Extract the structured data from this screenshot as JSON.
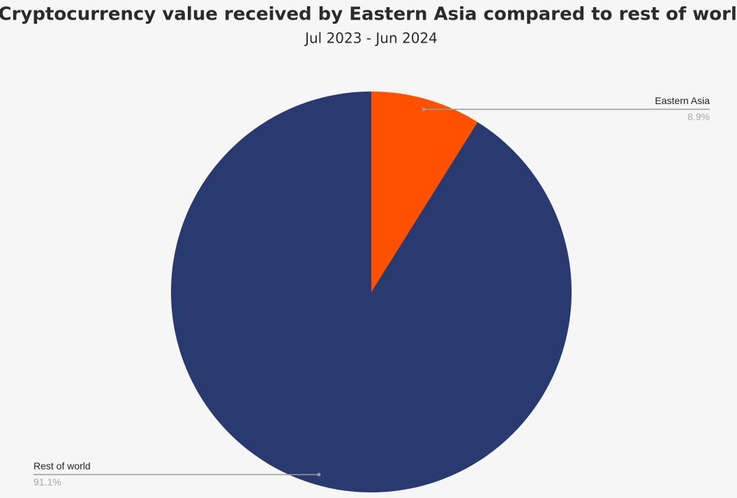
{
  "chart_data": {
    "type": "pie",
    "title": "Cryptocurrency value received by Eastern Asia compared to rest of world",
    "subtitle": "Jul 2023 - Jun 2024",
    "categories": [
      "Eastern Asia",
      "Rest of world"
    ],
    "values": [
      8.9,
      91.1
    ],
    "value_labels": [
      "8.9%",
      "91.1%"
    ],
    "colors": [
      "#ff5100",
      "#293a70"
    ]
  }
}
